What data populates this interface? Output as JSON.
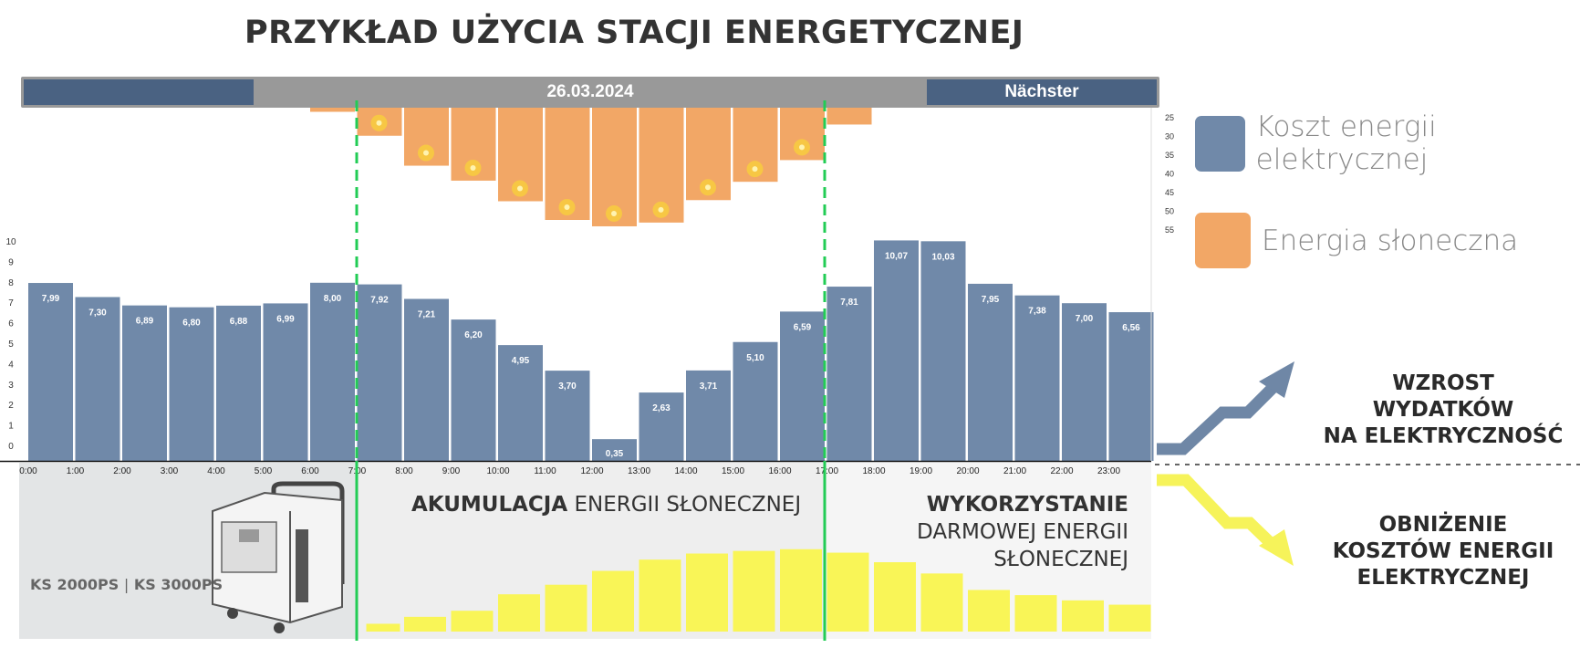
{
  "title": "PRZYKŁAD UŻYCIA STACJI ENERGETYCZNEJ",
  "nav": {
    "date": "26.03.2024",
    "next_label": "Nächster"
  },
  "legend": [
    {
      "label": "Koszt energii elektrycznej",
      "color": "#7089a9"
    },
    {
      "label": "Energia słoneczna",
      "color": "#f2a766"
    }
  ],
  "right_labels": {
    "increase": [
      "WZROST",
      "WYDATKÓW",
      "NA ELEKTRYCZNOŚĆ"
    ],
    "decrease": [
      "OBNIŻENIE",
      "KOSZTÓW ENERGII",
      "ELEKTRYCZNEJ"
    ]
  },
  "panels": {
    "model": "KS 2000PS",
    "model_sep": "|",
    "model2": "KS 3000PS",
    "accum_bold": "AKUMULACJA",
    "accum_rest": " ENERGII SŁONECZNEJ",
    "use_bold": "WYKORZYSTANIE",
    "use_line2": "DARMOWEJ ENERGII",
    "use_line3": "SŁONECZNEJ"
  },
  "colors": {
    "cost_bar": "#7089a9",
    "solar_bar": "#f2a766",
    "yellow_bar": "#f9f557",
    "green_line": "#22cc55",
    "up_arrow": "#6f87a6",
    "down_arrow": "#f6f35a"
  },
  "chart_data": [
    {
      "type": "bar",
      "categories": [
        "0:00",
        "1:00",
        "2:00",
        "3:00",
        "4:00",
        "5:00",
        "6:00",
        "7:00",
        "8:00",
        "9:00",
        "10:00",
        "11:00",
        "12:00",
        "13:00",
        "14:00",
        "15:00",
        "16:00",
        "17:00",
        "18:00",
        "19:00",
        "20:00",
        "21:00",
        "22:00",
        "23:00"
      ],
      "values": [
        7.99,
        7.3,
        6.89,
        6.8,
        6.88,
        6.99,
        8.0,
        7.92,
        7.21,
        6.2,
        4.95,
        3.7,
        0.35,
        2.63,
        3.71,
        5.1,
        6.59,
        7.81,
        10.07,
        10.03,
        7.95,
        7.38,
        7.0,
        6.56
      ],
      "labels": [
        "7,99",
        "7,30",
        "6,89",
        "6,80",
        "6,88",
        "6,99",
        "8,00",
        "7,92",
        "7,21",
        "6,20",
        "4,95",
        "3,70",
        "0,35",
        "2,63",
        "3,71",
        "5,10",
        "6,59",
        "7,81",
        "10,07",
        "10,03",
        "7,95",
        "7,38",
        "7,00",
        "6,56"
      ],
      "yticks": [
        0,
        1,
        2,
        3,
        4,
        5,
        6,
        7,
        8,
        9,
        10
      ],
      "ylim": [
        0,
        10
      ]
    },
    {
      "type": "bar",
      "orientation": "downward",
      "categories": [
        "6:00",
        "7:00",
        "8:00",
        "9:00",
        "10:00",
        "11:00",
        "12:00",
        "13:00",
        "14:00",
        "15:00",
        "16:00",
        "17:00"
      ],
      "values": [
        24.6,
        31,
        39,
        43,
        48.5,
        53.5,
        55.2,
        54.2,
        48.2,
        43.3,
        37.5,
        28
      ],
      "sun_icons": [
        false,
        true,
        true,
        true,
        true,
        true,
        true,
        true,
        true,
        true,
        true,
        false
      ],
      "yticks": [
        25,
        30,
        35,
        40,
        45,
        50,
        55
      ],
      "ylim": [
        23.5,
        58
      ]
    },
    {
      "type": "bar",
      "categories": [
        "7:00",
        "8:00",
        "9:00",
        "10:00",
        "11:00",
        "12:00",
        "13:00",
        "14:00",
        "15:00",
        "16:00",
        "17:00",
        "18:00",
        "19:00",
        "20:00",
        "21:00",
        "22:00",
        "23:00"
      ],
      "values": [
        9,
        17,
        24,
        43,
        54,
        70,
        83,
        90,
        93,
        95,
        91,
        80,
        67,
        48,
        42,
        36,
        31
      ],
      "ylim": [
        0,
        100
      ]
    }
  ]
}
